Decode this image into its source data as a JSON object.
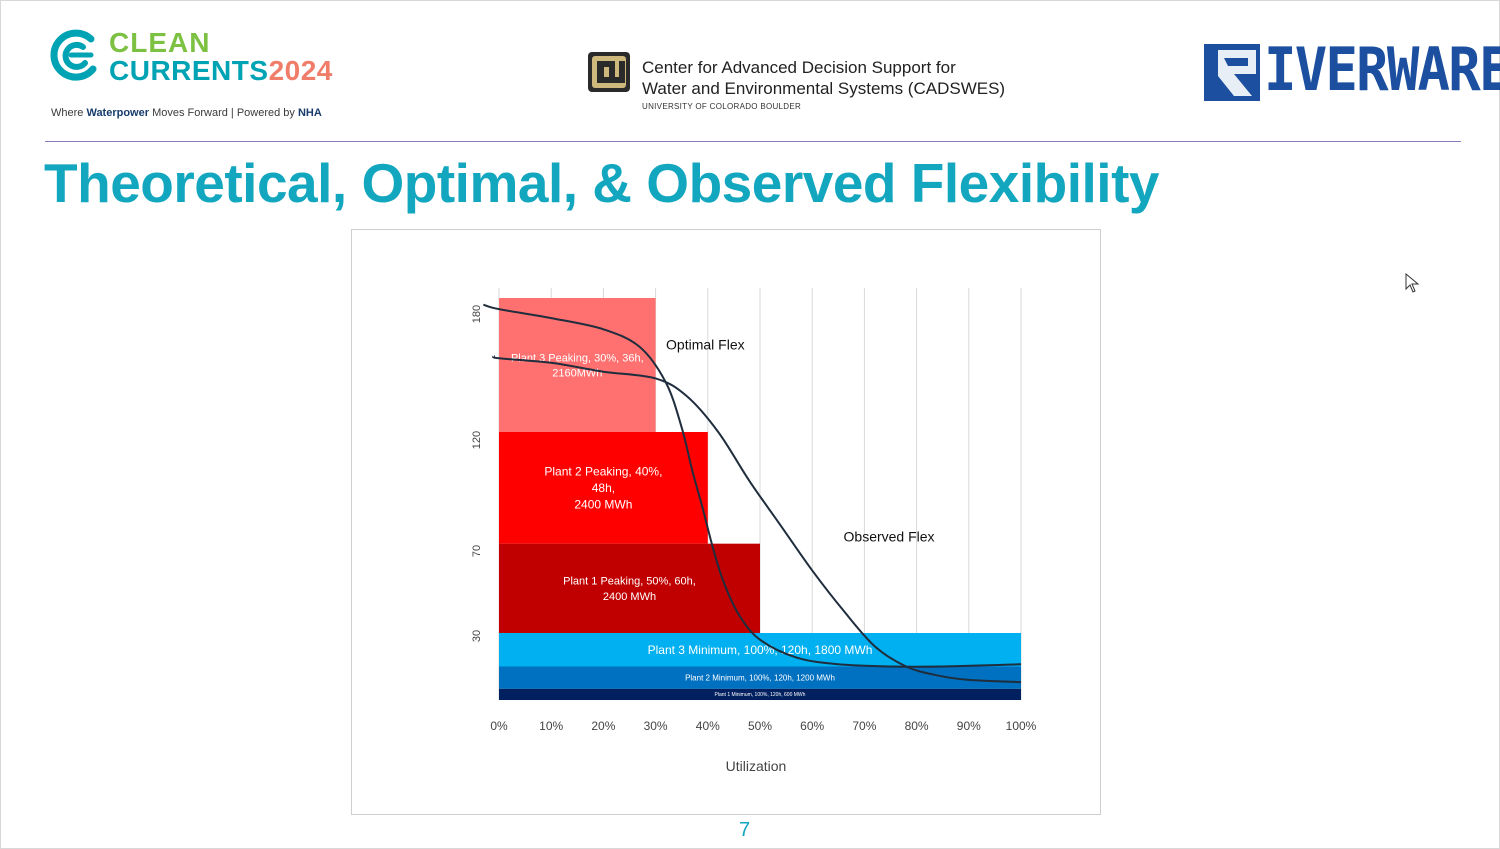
{
  "header": {
    "clean": "CLEAN",
    "currents": "CURRENTS",
    "year": "2024",
    "tagline_pre": "Where ",
    "tagline_bold": "Waterpower",
    "tagline_post": " Moves Forward | Powered by ",
    "tagline_nha": "NHA",
    "cu_line1": "Center for Advanced Decision Support for",
    "cu_line2": "Water and Environmental Systems (CADSWES)",
    "cu_line3": "UNIVERSITY OF COLORADO BOULDER",
    "riverware": "IVERWARE"
  },
  "slide": {
    "title": "Theoretical, Optimal, & Observed Flexibility",
    "page_number": "7"
  },
  "colors": {
    "title": "#13a6bf",
    "plant3_peaking": "#ff7171",
    "plant2_peaking": "#ff0000",
    "plant1_peaking": "#c00000",
    "plant3_minimum": "#00b0f0",
    "plant2_minimum": "#0070c0",
    "plant1_minimum": "#002060",
    "curve": "#1f2d3d"
  },
  "chart_data": {
    "type": "area",
    "xlabel": "Utilization",
    "x_ticks": [
      "0%",
      "10%",
      "20%",
      "30%",
      "40%",
      "50%",
      "60%",
      "70%",
      "80%",
      "90%",
      "100%"
    ],
    "y_ticks": [
      "30",
      "70",
      "120",
      "180"
    ],
    "grid": "vertical",
    "blocks": [
      {
        "label": [
          "Plant 3 Peaking, 30%, 36h,",
          "2160MWh"
        ],
        "x0": 0,
        "x1": 30,
        "y0": 120,
        "y1": 180,
        "color": "#ff7171",
        "text_color": "#ffffff",
        "font": 11
      },
      {
        "label": [
          "Plant 2 Peaking, 40%,",
          "48h,",
          "2400 MWh"
        ],
        "x0": 0,
        "x1": 40,
        "y0": 70,
        "y1": 120,
        "color": "#ff0000",
        "text_color": "#ffffff",
        "font": 12
      },
      {
        "label": [
          "Plant 1 Peaking, 50%, 60h,",
          "2400 MWh"
        ],
        "x0": 0,
        "x1": 50,
        "y0": 30,
        "y1": 70,
        "color": "#c00000",
        "text_color": "#ffffff",
        "font": 11
      },
      {
        "label": [
          "Plant 3 Minimum, 100%, 120h, 1800 MWh"
        ],
        "x0": 0,
        "x1": 100,
        "y0": 15,
        "y1": 30,
        "color": "#00b0f0",
        "text_color": "#ffffff",
        "font": 12
      },
      {
        "label": [
          "Plant 2 Minimum, 100%, 120h, 1200 MWh"
        ],
        "x0": 0,
        "x1": 100,
        "y0": 5,
        "y1": 15,
        "color": "#0070c0",
        "text_color": "#ffffff",
        "font": 8
      },
      {
        "label": [
          "Plant 1 Minimum, 100%, 120h, 600 MWh"
        ],
        "x0": 0,
        "x1": 100,
        "y0": 0,
        "y1": 5,
        "color": "#002060",
        "text_color": "#ffffff",
        "font": 5
      }
    ],
    "series": [
      {
        "name": "Optimal Flex",
        "x": [
          -3,
          0,
          10,
          20,
          27,
          32,
          35,
          37,
          39,
          41,
          43,
          46,
          50,
          57,
          65,
          75,
          85,
          100
        ],
        "y": [
          177,
          175,
          171,
          166,
          158,
          142,
          122,
          103,
          86,
          68,
          53,
          38,
          27,
          19,
          16,
          15,
          15,
          16
        ]
      },
      {
        "name": "Observed Flex",
        "x": [
          -1,
          0,
          10,
          20,
          30,
          36,
          42,
          48,
          54,
          60,
          66,
          72,
          78,
          84,
          90,
          100
        ],
        "y": [
          154,
          153,
          151,
          147,
          144,
          136,
          120,
          98,
          78,
          58,
          40,
          24,
          15,
          11,
          9,
          8
        ]
      }
    ],
    "annotations": [
      {
        "text": "Optimal Flex",
        "x": 32,
        "y": 157
      },
      {
        "text": "Observed Flex",
        "x": 66,
        "y": 71
      }
    ]
  }
}
